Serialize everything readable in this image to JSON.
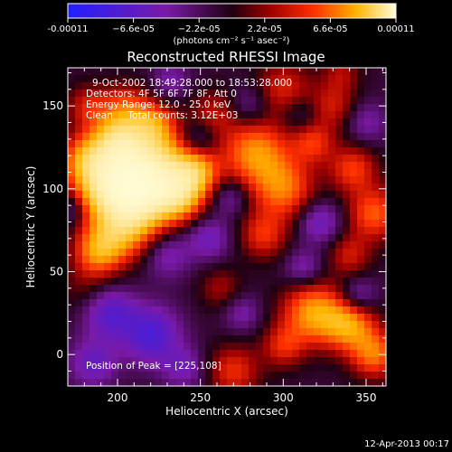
{
  "chart_data": {
    "type": "heatmap",
    "title": "Reconstructed RHESSI Image",
    "xlabel": "Heliocentric X (arcsec)",
    "ylabel": "Heliocentric Y (arcsec)",
    "xlim": [
      170,
      362
    ],
    "ylim": [
      -19,
      173
    ],
    "x_ticks": [
      200,
      250,
      300,
      350
    ],
    "y_ticks": [
      0,
      50,
      100,
      150
    ],
    "colorbar": {
      "range": [
        -0.00011,
        0.00011
      ],
      "tick_values": [
        -0.00011,
        -6.6e-05,
        -2.2e-05,
        2.2e-05,
        6.6e-05,
        0.00011
      ],
      "tick_labels": [
        "-0.00011",
        "−6.6e-05",
        "−2.2e-05",
        "2.2e-05",
        "6.6e-05",
        "0.00011"
      ],
      "unit_label": "(photons cm⁻² s⁻¹ asec⁻²)"
    },
    "annotations": [
      "9-Oct-2002 18:49:28.000 to 18:53:28.000",
      "Detectors: 4F 5F 6F 7F 8F, Att 0",
      "Energy Range: 12.0 - 25.0 keV",
      "Clean     Total counts: 3.12E+03"
    ],
    "peak": {
      "x": 225,
      "y": 108,
      "label": "Position of Peak = [225,108]"
    },
    "blobs": [
      {
        "x": 206,
        "y": 113,
        "r": 17,
        "v": 1.0
      },
      {
        "x": 228,
        "y": 111,
        "r": 16,
        "v": 0.95
      },
      {
        "x": 192,
        "y": 100,
        "r": 13,
        "v": 0.9
      },
      {
        "x": 215,
        "y": 92,
        "r": 13,
        "v": 0.85
      },
      {
        "x": 238,
        "y": 95,
        "r": 10,
        "v": 0.7
      },
      {
        "x": 248,
        "y": 110,
        "r": 9,
        "v": 0.65
      },
      {
        "x": 202,
        "y": 75,
        "r": 13,
        "v": 0.8
      },
      {
        "x": 188,
        "y": 62,
        "r": 10,
        "v": 0.7
      },
      {
        "x": 200,
        "y": 130,
        "r": 11,
        "v": 0.75
      },
      {
        "x": 180,
        "y": 118,
        "r": 10,
        "v": 0.6
      },
      {
        "x": 222,
        "y": 140,
        "r": 9,
        "v": 0.55
      },
      {
        "x": 205,
        "y": 150,
        "r": 10,
        "v": 0.45
      },
      {
        "x": 182,
        "y": 150,
        "r": 9,
        "v": 0.4
      },
      {
        "x": 258,
        "y": 146,
        "r": 10,
        "v": 0.35
      },
      {
        "x": 300,
        "y": 160,
        "r": 12,
        "v": 0.45
      },
      {
        "x": 330,
        "y": 150,
        "r": 10,
        "v": 0.4
      },
      {
        "x": 283,
        "y": 122,
        "r": 14,
        "v": 0.8
      },
      {
        "x": 300,
        "y": 100,
        "r": 13,
        "v": 0.7
      },
      {
        "x": 288,
        "y": 72,
        "r": 10,
        "v": 0.5
      },
      {
        "x": 318,
        "y": 128,
        "r": 9,
        "v": 0.5
      },
      {
        "x": 342,
        "y": 112,
        "r": 10,
        "v": 0.55
      },
      {
        "x": 355,
        "y": 85,
        "r": 11,
        "v": 0.65
      },
      {
        "x": 340,
        "y": 60,
        "r": 9,
        "v": 0.4
      },
      {
        "x": 318,
        "y": 25,
        "r": 13,
        "v": 0.85
      },
      {
        "x": 340,
        "y": 18,
        "r": 11,
        "v": 0.8
      },
      {
        "x": 355,
        "y": 0,
        "r": 10,
        "v": 0.7
      },
      {
        "x": 300,
        "y": 5,
        "r": 9,
        "v": 0.45
      },
      {
        "x": 270,
        "y": -10,
        "r": 11,
        "v": 0.5
      },
      {
        "x": 262,
        "y": 40,
        "r": 9,
        "v": 0.3
      },
      {
        "x": 230,
        "y": 60,
        "r": 10,
        "v": -0.35
      },
      {
        "x": 180,
        "y": 40,
        "r": 11,
        "v": 0.2
      },
      {
        "x": 195,
        "y": 25,
        "r": 11,
        "v": -0.55
      },
      {
        "x": 220,
        "y": 12,
        "r": 12,
        "v": -0.65
      },
      {
        "x": 185,
        "y": -5,
        "r": 10,
        "v": -0.45
      },
      {
        "x": 240,
        "y": -8,
        "r": 9,
        "v": -0.35
      },
      {
        "x": 255,
        "y": 70,
        "r": 9,
        "v": -0.4
      },
      {
        "x": 268,
        "y": 95,
        "r": 8,
        "v": -0.3
      },
      {
        "x": 322,
        "y": 80,
        "r": 9,
        "v": -0.45
      },
      {
        "x": 345,
        "y": 35,
        "r": 8,
        "v": -0.4
      },
      {
        "x": 312,
        "y": 52,
        "r": 8,
        "v": -0.35
      },
      {
        "x": 248,
        "y": 130,
        "r": 8,
        "v": -0.35
      },
      {
        "x": 350,
        "y": 140,
        "r": 9,
        "v": -0.3
      },
      {
        "x": 280,
        "y": 150,
        "r": 9,
        "v": -0.3
      },
      {
        "x": 232,
        "y": 165,
        "r": 8,
        "v": -0.3
      },
      {
        "x": 172,
        "y": 88,
        "r": 7,
        "v": -0.3
      },
      {
        "x": 310,
        "y": 145,
        "r": 8,
        "v": -0.25
      },
      {
        "x": 275,
        "y": 25,
        "r": 8,
        "v": -0.3
      },
      {
        "x": 335,
        "y": 170,
        "r": 8,
        "v": 0.3
      }
    ]
  },
  "footer": {
    "timestamp": "12-Apr-2013 00:17"
  }
}
